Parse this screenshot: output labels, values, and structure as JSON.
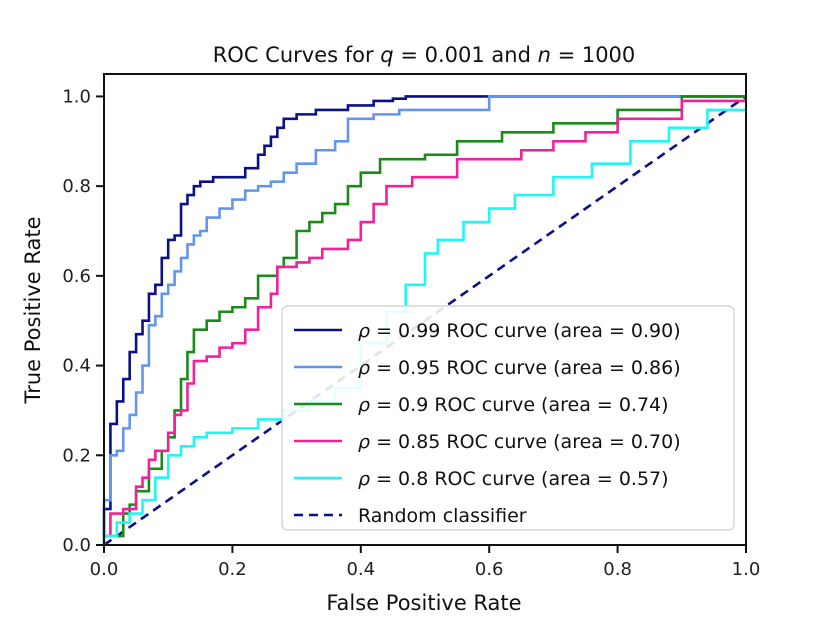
{
  "chart_data": {
    "type": "line",
    "title_prefix": "ROC Curves for ",
    "title_q_symbol": "q",
    "title_q_value": " = 0.001",
    "title_middle": " and ",
    "title_n_symbol": "n",
    "title_n_value": " = 1000",
    "xlabel": "False Positive Rate",
    "ylabel": "True Positive Rate",
    "xlim": [
      0,
      1
    ],
    "ylim": [
      0,
      1.05
    ],
    "x_ticks": [
      0.0,
      0.2,
      0.4,
      0.6,
      0.8,
      1.0
    ],
    "x_tick_labels": [
      "0.0",
      "0.2",
      "0.4",
      "0.6",
      "0.8",
      "1.0"
    ],
    "y_ticks": [
      0.0,
      0.2,
      0.4,
      0.6,
      0.8,
      1.0
    ],
    "y_tick_labels": [
      "0.0",
      "0.2",
      "0.4",
      "0.6",
      "0.8",
      "1.0"
    ],
    "grid": false,
    "legend_position": "lower-right",
    "rho_symbol": "ρ",
    "series": [
      {
        "name": "ρ = 0.99 ROC curve (area = 0.90)",
        "rho_label": " = 0.99 ROC curve (area = 0.90)",
        "color": "#0b1086",
        "dash": "solid",
        "x": [
          0.0,
          0.0,
          0.01,
          0.01,
          0.02,
          0.02,
          0.03,
          0.03,
          0.04,
          0.04,
          0.05,
          0.05,
          0.06,
          0.06,
          0.07,
          0.07,
          0.08,
          0.08,
          0.09,
          0.09,
          0.1,
          0.1,
          0.11,
          0.11,
          0.12,
          0.12,
          0.13,
          0.13,
          0.14,
          0.14,
          0.15,
          0.15,
          0.17,
          0.17,
          0.19,
          0.19,
          0.22,
          0.22,
          0.24,
          0.24,
          0.25,
          0.25,
          0.26,
          0.26,
          0.27,
          0.27,
          0.28,
          0.28,
          0.3,
          0.3,
          0.33,
          0.33,
          0.38,
          0.38,
          0.42,
          0.42,
          0.45,
          0.45,
          0.47,
          0.47,
          0.5,
          0.5,
          0.7,
          0.7,
          1.0
        ],
        "y": [
          0.0,
          0.08,
          0.08,
          0.27,
          0.27,
          0.32,
          0.32,
          0.37,
          0.37,
          0.43,
          0.43,
          0.47,
          0.47,
          0.5,
          0.5,
          0.56,
          0.56,
          0.58,
          0.58,
          0.64,
          0.64,
          0.68,
          0.68,
          0.69,
          0.69,
          0.76,
          0.76,
          0.78,
          0.78,
          0.8,
          0.8,
          0.81,
          0.81,
          0.82,
          0.82,
          0.82,
          0.82,
          0.84,
          0.84,
          0.87,
          0.87,
          0.89,
          0.89,
          0.91,
          0.91,
          0.93,
          0.93,
          0.95,
          0.95,
          0.96,
          0.96,
          0.97,
          0.97,
          0.98,
          0.98,
          0.99,
          0.99,
          0.995,
          0.995,
          1.0,
          1.0,
          1.0,
          1.0,
          1.0,
          1.0
        ]
      },
      {
        "name": "ρ = 0.95 ROC curve (area = 0.86)",
        "rho_label": " = 0.95 ROC curve (area = 0.86)",
        "color": "#6495ed",
        "dash": "solid",
        "x": [
          0.0,
          0.0,
          0.01,
          0.01,
          0.02,
          0.02,
          0.03,
          0.03,
          0.04,
          0.04,
          0.05,
          0.05,
          0.06,
          0.06,
          0.07,
          0.07,
          0.08,
          0.08,
          0.09,
          0.09,
          0.1,
          0.1,
          0.11,
          0.11,
          0.12,
          0.12,
          0.13,
          0.13,
          0.14,
          0.14,
          0.15,
          0.15,
          0.16,
          0.16,
          0.18,
          0.18,
          0.2,
          0.2,
          0.22,
          0.22,
          0.24,
          0.24,
          0.26,
          0.26,
          0.28,
          0.28,
          0.3,
          0.3,
          0.33,
          0.33,
          0.36,
          0.36,
          0.38,
          0.38,
          0.42,
          0.42,
          0.46,
          0.46,
          0.6,
          0.6,
          1.0
        ],
        "y": [
          0.0,
          0.1,
          0.1,
          0.2,
          0.2,
          0.21,
          0.21,
          0.26,
          0.26,
          0.29,
          0.29,
          0.34,
          0.34,
          0.4,
          0.4,
          0.49,
          0.49,
          0.51,
          0.51,
          0.56,
          0.56,
          0.58,
          0.58,
          0.61,
          0.61,
          0.64,
          0.64,
          0.67,
          0.67,
          0.69,
          0.69,
          0.7,
          0.7,
          0.73,
          0.73,
          0.75,
          0.75,
          0.77,
          0.77,
          0.79,
          0.79,
          0.8,
          0.8,
          0.81,
          0.81,
          0.83,
          0.83,
          0.85,
          0.85,
          0.88,
          0.88,
          0.9,
          0.9,
          0.95,
          0.95,
          0.96,
          0.96,
          0.97,
          0.97,
          1.0,
          1.0
        ]
      },
      {
        "name": "ρ = 0.9 ROC curve (area = 0.74)",
        "rho_label": " = 0.9 ROC curve (area = 0.74)",
        "color": "#1a8a1a",
        "dash": "solid",
        "x": [
          0.0,
          0.0,
          0.03,
          0.03,
          0.04,
          0.04,
          0.05,
          0.05,
          0.07,
          0.07,
          0.09,
          0.09,
          0.1,
          0.1,
          0.11,
          0.11,
          0.12,
          0.12,
          0.13,
          0.13,
          0.14,
          0.14,
          0.16,
          0.16,
          0.18,
          0.18,
          0.2,
          0.2,
          0.22,
          0.22,
          0.24,
          0.24,
          0.26,
          0.26,
          0.27,
          0.27,
          0.28,
          0.28,
          0.3,
          0.3,
          0.32,
          0.32,
          0.34,
          0.34,
          0.36,
          0.36,
          0.38,
          0.38,
          0.4,
          0.4,
          0.43,
          0.43,
          0.5,
          0.5,
          0.55,
          0.55,
          0.62,
          0.62,
          0.7,
          0.7,
          0.8,
          0.8,
          0.9,
          0.9,
          1.0
        ],
        "y": [
          0.0,
          0.02,
          0.02,
          0.07,
          0.07,
          0.09,
          0.09,
          0.12,
          0.12,
          0.17,
          0.17,
          0.21,
          0.21,
          0.24,
          0.24,
          0.3,
          0.3,
          0.37,
          0.37,
          0.43,
          0.43,
          0.48,
          0.48,
          0.5,
          0.5,
          0.52,
          0.52,
          0.53,
          0.53,
          0.55,
          0.55,
          0.6,
          0.6,
          0.6,
          0.6,
          0.62,
          0.62,
          0.64,
          0.64,
          0.7,
          0.7,
          0.72,
          0.72,
          0.74,
          0.74,
          0.76,
          0.76,
          0.8,
          0.8,
          0.83,
          0.83,
          0.86,
          0.86,
          0.87,
          0.87,
          0.9,
          0.9,
          0.92,
          0.92,
          0.94,
          0.94,
          0.97,
          0.97,
          1.0,
          1.0
        ]
      },
      {
        "name": "ρ = 0.85 ROC curve (area = 0.70)",
        "rho_label": " = 0.85 ROC curve (area = 0.70)",
        "color": "#f0219a",
        "dash": "solid",
        "x": [
          0.0,
          0.0,
          0.01,
          0.01,
          0.03,
          0.03,
          0.05,
          0.05,
          0.06,
          0.06,
          0.07,
          0.07,
          0.08,
          0.08,
          0.1,
          0.1,
          0.11,
          0.11,
          0.12,
          0.12,
          0.13,
          0.13,
          0.14,
          0.14,
          0.16,
          0.16,
          0.18,
          0.18,
          0.2,
          0.2,
          0.22,
          0.22,
          0.24,
          0.24,
          0.26,
          0.26,
          0.27,
          0.27,
          0.28,
          0.28,
          0.3,
          0.3,
          0.32,
          0.32,
          0.34,
          0.34,
          0.38,
          0.38,
          0.4,
          0.4,
          0.42,
          0.42,
          0.44,
          0.44,
          0.48,
          0.48,
          0.55,
          0.55,
          0.65,
          0.65,
          0.7,
          0.7,
          0.75,
          0.75,
          0.8,
          0.8,
          0.9,
          0.9,
          1.0
        ],
        "y": [
          0.0,
          0.02,
          0.02,
          0.07,
          0.07,
          0.08,
          0.08,
          0.13,
          0.13,
          0.15,
          0.15,
          0.19,
          0.19,
          0.21,
          0.21,
          0.25,
          0.25,
          0.29,
          0.29,
          0.3,
          0.3,
          0.36,
          0.36,
          0.41,
          0.41,
          0.42,
          0.42,
          0.44,
          0.44,
          0.45,
          0.45,
          0.48,
          0.48,
          0.53,
          0.53,
          0.56,
          0.56,
          0.62,
          0.62,
          0.62,
          0.62,
          0.63,
          0.63,
          0.64,
          0.64,
          0.66,
          0.66,
          0.68,
          0.68,
          0.72,
          0.72,
          0.76,
          0.76,
          0.8,
          0.8,
          0.82,
          0.82,
          0.86,
          0.86,
          0.88,
          0.88,
          0.9,
          0.9,
          0.92,
          0.92,
          0.95,
          0.95,
          0.99,
          0.99
        ]
      },
      {
        "name": "ρ = 0.8 ROC curve (area = 0.57)",
        "rho_label": " = 0.8 ROC curve (area = 0.57)",
        "color": "#22f5f5",
        "dash": "solid",
        "x": [
          0.0,
          0.0,
          0.02,
          0.02,
          0.04,
          0.04,
          0.06,
          0.06,
          0.08,
          0.08,
          0.1,
          0.1,
          0.12,
          0.12,
          0.14,
          0.14,
          0.16,
          0.16,
          0.2,
          0.2,
          0.24,
          0.24,
          0.28,
          0.28,
          0.32,
          0.32,
          0.36,
          0.36,
          0.4,
          0.4,
          0.44,
          0.44,
          0.47,
          0.47,
          0.5,
          0.5,
          0.52,
          0.52,
          0.56,
          0.56,
          0.6,
          0.6,
          0.64,
          0.64,
          0.7,
          0.7,
          0.76,
          0.76,
          0.82,
          0.82,
          0.88,
          0.88,
          0.94,
          0.94,
          1.0
        ],
        "y": [
          0.0,
          0.02,
          0.02,
          0.05,
          0.05,
          0.07,
          0.07,
          0.1,
          0.1,
          0.15,
          0.15,
          0.2,
          0.2,
          0.22,
          0.22,
          0.24,
          0.24,
          0.25,
          0.25,
          0.26,
          0.26,
          0.28,
          0.28,
          0.3,
          0.3,
          0.32,
          0.32,
          0.35,
          0.35,
          0.45,
          0.45,
          0.52,
          0.52,
          0.58,
          0.58,
          0.65,
          0.65,
          0.68,
          0.68,
          0.72,
          0.72,
          0.75,
          0.75,
          0.78,
          0.78,
          0.82,
          0.82,
          0.85,
          0.85,
          0.9,
          0.9,
          0.93,
          0.93,
          0.97,
          0.97
        ]
      },
      {
        "name": "Random classifier",
        "rho_label": "",
        "color": "#0b1086",
        "dash": "dashed",
        "x": [
          0.0,
          1.0
        ],
        "y": [
          0.0,
          1.0
        ]
      }
    ]
  }
}
